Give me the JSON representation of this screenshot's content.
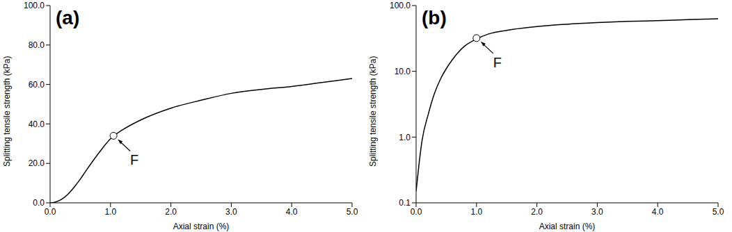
{
  "chart_data": [
    {
      "type": "line",
      "title": "(a)",
      "x_label": "Axial strain (%)",
      "y_label": "Splitting tensile strength (kPa)",
      "x": [
        0,
        0.05,
        0.1,
        0.2,
        0.3,
        0.4,
        0.5,
        0.6,
        0.8,
        1.0,
        1.2,
        1.5,
        2.0,
        2.5,
        3.0,
        3.5,
        4.0,
        4.5,
        5.0
      ],
      "values": [
        0,
        0.1,
        0.5,
        2,
        4.5,
        8,
        12,
        16.5,
        25,
        32.5,
        37,
        42,
        48,
        52,
        55.5,
        57.5,
        59,
        61,
        63
      ],
      "color": "#000000",
      "grid": false,
      "xlim": [
        0,
        5
      ],
      "xticks": [
        {
          "value": 0,
          "label": "0.0"
        },
        {
          "value": 1,
          "label": "1.0"
        },
        {
          "value": 2,
          "label": "2.0"
        },
        {
          "value": 3,
          "label": "3.0"
        },
        {
          "value": 4,
          "label": "4.0"
        },
        {
          "value": 5,
          "label": "5.0"
        }
      ],
      "ylim": [
        0,
        100
      ],
      "yticks": [
        {
          "value": 0,
          "label": "0.0"
        },
        {
          "value": 20,
          "label": "20.0"
        },
        {
          "value": 40,
          "label": "40.0"
        },
        {
          "value": 60,
          "label": "60.0"
        },
        {
          "value": 80,
          "label": "80.0"
        },
        {
          "value": 100,
          "label": "100.0"
        }
      ],
      "annotations": [
        {
          "text": "F",
          "x": 1.05,
          "y": 34
        }
      ]
    },
    {
      "type": "line",
      "title": "(b)",
      "x_label": "Axial strain (%)",
      "y_label": "Splitting tensile strength (kPa)",
      "x": [
        0,
        0.05,
        0.1,
        0.2,
        0.3,
        0.4,
        0.5,
        0.6,
        0.8,
        1.0,
        1.2,
        1.5,
        2.0,
        2.5,
        3.0,
        3.5,
        4.0,
        4.5,
        5.0
      ],
      "values": [
        0.15,
        0.4,
        0.9,
        2.2,
        4.5,
        7.5,
        11,
        15,
        24,
        31,
        37,
        42,
        48,
        52,
        55,
        57.5,
        59,
        61,
        63
      ],
      "color": "#000000",
      "grid": false,
      "log": "y",
      "xlim": [
        0,
        5
      ],
      "xticks": [
        {
          "value": 0,
          "label": "0.0"
        },
        {
          "value": 1,
          "label": "1.0"
        },
        {
          "value": 2,
          "label": "2.0"
        },
        {
          "value": 3,
          "label": "3.0"
        },
        {
          "value": 4,
          "label": "4.0"
        },
        {
          "value": 5,
          "label": "5.0"
        }
      ],
      "ylim": [
        0.1,
        100
      ],
      "yticks": [
        0.1,
        {
          "value": 1,
          "label": "1.0"
        },
        {
          "value": 10,
          "label": "10.0"
        },
        {
          "value": 100,
          "label": "100.0"
        }
      ],
      "annotations": [
        {
          "text": "F",
          "x": 1.0,
          "y": 32
        }
      ]
    }
  ]
}
